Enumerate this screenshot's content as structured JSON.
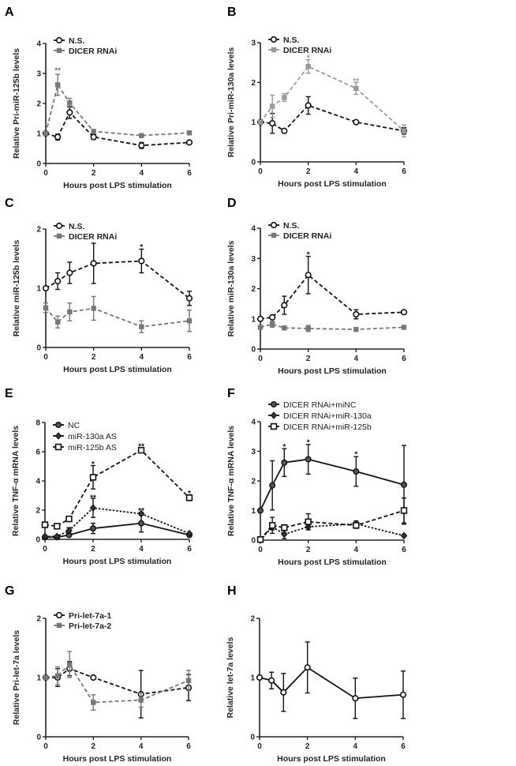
{
  "chart_data": [
    {
      "panel": "A",
      "type": "line",
      "xlabel": "Hours post LPS stimulation",
      "ylabel": "Relative Pri-miR-125b levels",
      "xlim": [
        0,
        6
      ],
      "ylim": [
        0,
        4
      ],
      "xticks": [
        0,
        2,
        4,
        6
      ],
      "yticks": [
        0,
        1,
        2,
        3,
        4
      ],
      "legend": "top-left",
      "grid": false,
      "x": [
        0,
        0.5,
        1,
        2,
        4,
        6
      ],
      "series": [
        {
          "name": "N.S.",
          "color": "#111111",
          "marker": "open-circle",
          "line": "dashed",
          "values": [
            1,
            0.88,
            1.7,
            0.88,
            0.6,
            0.7
          ],
          "errors": [
            0.05,
            0.1,
            0.2,
            0.08,
            0.1,
            0.05
          ]
        },
        {
          "name": "DICER RNAi",
          "color": "#777777",
          "marker": "square",
          "line": "dashed",
          "values": [
            1,
            2.62,
            2.02,
            1.07,
            0.93,
            1.02
          ],
          "errors": [
            0.05,
            0.35,
            0.15,
            0.05,
            0.04,
            0.04
          ]
        }
      ],
      "annotations": [
        {
          "x": 0.5,
          "y": 3.15,
          "text": "**",
          "color": "#777777"
        }
      ]
    },
    {
      "panel": "B",
      "type": "line",
      "xlabel": "Hours post LPS stimulation",
      "ylabel": "Relative Pri-miR-130a levels",
      "xlim": [
        0,
        6
      ],
      "ylim": [
        0,
        3
      ],
      "xticks": [
        0,
        2,
        4,
        6
      ],
      "yticks": [
        0,
        1,
        2,
        3
      ],
      "legend": "top-left",
      "grid": false,
      "x": [
        0,
        0.5,
        1,
        2,
        4,
        6
      ],
      "series": [
        {
          "name": "N.S.",
          "color": "#111111",
          "marker": "open-circle",
          "line": "dashed",
          "values": [
            1,
            0.97,
            0.78,
            1.42,
            1.0,
            0.78
          ],
          "errors": [
            0.03,
            0.25,
            0.05,
            0.22,
            0.02,
            0.08
          ]
        },
        {
          "name": "DICER RNAi",
          "color": "#999999",
          "marker": "square",
          "line": "dashed",
          "values": [
            1,
            1.4,
            1.62,
            2.4,
            1.85,
            0.78
          ],
          "errors": [
            0.03,
            0.28,
            0.1,
            0.17,
            0.15,
            0.15
          ]
        }
      ],
      "annotations": [
        {
          "x": 2,
          "y": 2.65,
          "text": "*",
          "color": "#999999"
        },
        {
          "x": 4,
          "y": 2.07,
          "text": "**",
          "color": "#999999"
        }
      ]
    },
    {
      "panel": "C",
      "type": "line",
      "xlabel": "Hours post LPS stimulation",
      "ylabel": "Relative miR-125b levels",
      "xlim": [
        0,
        6
      ],
      "ylim": [
        0,
        2
      ],
      "xticks": [
        0,
        2,
        4,
        6
      ],
      "yticks": [
        0,
        1,
        2
      ],
      "legend": "top-left",
      "grid": false,
      "x": [
        0,
        0.5,
        1,
        2,
        4,
        6
      ],
      "series": [
        {
          "name": "N.S.",
          "color": "#111111",
          "marker": "open-circle",
          "line": "dashed",
          "values": [
            1,
            1.12,
            1.26,
            1.42,
            1.46,
            0.83
          ],
          "errors": [
            0.02,
            0.14,
            0.18,
            0.34,
            0.2,
            0.12
          ]
        },
        {
          "name": "DICER RNAi",
          "color": "#777777",
          "marker": "square",
          "line": "dashed",
          "values": [
            0.67,
            0.43,
            0.6,
            0.66,
            0.35,
            0.45
          ],
          "errors": [
            0.08,
            0.1,
            0.15,
            0.2,
            0.1,
            0.18
          ]
        }
      ],
      "annotations": [
        {
          "x": 4,
          "y": 1.72,
          "text": "*",
          "color": "#111111"
        }
      ]
    },
    {
      "panel": "D",
      "type": "line",
      "xlabel": "Hours post LPS stimulation",
      "ylabel": "Relative miR-130a levels",
      "xlim": [
        0,
        6
      ],
      "ylim": [
        0,
        4
      ],
      "xticks": [
        0,
        2,
        4,
        6
      ],
      "yticks": [
        0,
        1,
        2,
        3,
        4
      ],
      "legend": "top-left",
      "grid": false,
      "x": [
        0,
        0.5,
        1,
        2,
        4,
        6
      ],
      "series": [
        {
          "name": "N.S.",
          "color": "#111111",
          "marker": "open-circle",
          "line": "dashed",
          "values": [
            1,
            1.05,
            1.45,
            2.45,
            1.15,
            1.22
          ],
          "errors": [
            0.03,
            0.05,
            0.3,
            0.62,
            0.15,
            0.05
          ]
        },
        {
          "name": "DICER RNAi",
          "color": "#777777",
          "marker": "square",
          "line": "dashed",
          "values": [
            0.72,
            0.82,
            0.7,
            0.68,
            0.65,
            0.72
          ],
          "errors": [
            0.05,
            0.1,
            0.05,
            0.1,
            0.03,
            0.03
          ]
        }
      ],
      "annotations": [
        {
          "x": 2,
          "y": 3.18,
          "text": "*",
          "color": "#111111"
        }
      ]
    },
    {
      "panel": "E",
      "type": "line",
      "xlabel": "Hours post LPS stimulation",
      "ylabel": "Relative TNF-α mRNA levels",
      "xlim": [
        0,
        6
      ],
      "ylim": [
        0,
        8
      ],
      "xticks": [
        0,
        2,
        4,
        6
      ],
      "yticks": [
        0,
        2,
        4,
        6,
        8
      ],
      "legend": "top-left",
      "grid": false,
      "x": [
        0,
        0.5,
        1,
        2,
        4,
        6
      ],
      "series": [
        {
          "name": "NC",
          "color": "#111111",
          "marker": "filled-circle",
          "line": "solid",
          "values": [
            0.15,
            0.15,
            0.3,
            0.75,
            1.1,
            0.3
          ],
          "errors": [
            0.05,
            0.05,
            0.1,
            0.35,
            0.6,
            0.05
          ]
        },
        {
          "name": "miR-130a AS",
          "color": "#111111",
          "marker": "filled-diamond",
          "line": "dotted",
          "values": [
            0.2,
            0.2,
            0.6,
            2.15,
            1.75,
            0.4
          ],
          "errors": [
            0.05,
            0.05,
            0.2,
            0.65,
            0.1,
            0.05
          ]
        },
        {
          "name": "miR-125b AS",
          "color": "#111111",
          "marker": "open-square",
          "line": "dashed",
          "values": [
            1,
            0.9,
            1.4,
            4.25,
            6.1,
            2.85
          ],
          "errors": [
            0.05,
            0.05,
            0.1,
            0.8,
            0.1,
            0.2
          ]
        }
      ],
      "annotations": [
        {
          "x": 2,
          "y": 5.25,
          "text": "*",
          "color": "#111111"
        },
        {
          "x": 2,
          "y": 2.95,
          "text": "**",
          "color": "#111111"
        },
        {
          "x": 4,
          "y": 6.45,
          "text": "**",
          "color": "#111111"
        },
        {
          "x": 4,
          "y": 2.05,
          "text": "**",
          "color": "#111111"
        },
        {
          "x": 6,
          "y": 3.25,
          "text": "*",
          "color": "#111111"
        }
      ]
    },
    {
      "panel": "F",
      "type": "line",
      "xlabel": "Hours post LPS stimulation",
      "ylabel": "Relative TNF-α mRNA levels",
      "xlim": [
        0,
        6
      ],
      "ylim": [
        0,
        4
      ],
      "xticks": [
        0,
        2,
        4,
        6
      ],
      "yticks": [
        0,
        1,
        2,
        3,
        4
      ],
      "legend": "top-left",
      "grid": false,
      "x": [
        0,
        0.5,
        1,
        2,
        4,
        6
      ],
      "series": [
        {
          "name": "DICER RNAi+miNC",
          "color": "#111111",
          "marker": "filled-circle",
          "line": "solid",
          "values": [
            1,
            1.85,
            2.62,
            2.73,
            2.32,
            1.87
          ],
          "errors": [
            0.02,
            0.83,
            0.47,
            0.5,
            0.5,
            1.33
          ]
        },
        {
          "name": "DICER RNAi+miR-130a",
          "color": "#111111",
          "marker": "filled-diamond",
          "line": "dotted",
          "values": [
            0,
            0.45,
            0.2,
            0.45,
            0.55,
            0.15
          ],
          "errors": [
            0,
            0.1,
            0.15,
            0.1,
            0.1,
            0.03
          ]
        },
        {
          "name": "DICER RNAi+miR-125b",
          "color": "#111111",
          "marker": "open-square",
          "line": "dashed",
          "values": [
            0.02,
            0.5,
            0.42,
            0.62,
            0.5,
            1.0
          ],
          "errors": [
            0.02,
            0.27,
            0.1,
            0.27,
            0.1,
            0.42
          ]
        }
      ],
      "annotations": [
        {
          "x": 1,
          "y": 3.2,
          "text": "*",
          "color": "#111111"
        },
        {
          "x": 2,
          "y": 3.35,
          "text": "*",
          "color": "#111111"
        },
        {
          "x": 4,
          "y": 2.95,
          "text": "*",
          "color": "#111111"
        }
      ]
    },
    {
      "panel": "G",
      "type": "line",
      "xlabel": "Hours post LPS stimulation",
      "ylabel": "Relative Pri-let-7a levels",
      "xlim": [
        0,
        6
      ],
      "ylim": [
        0,
        2
      ],
      "xticks": [
        0,
        2,
        4,
        6
      ],
      "yticks": [
        0,
        1,
        2
      ],
      "legend": "top-left",
      "grid": false,
      "x": [
        0,
        0.5,
        1,
        2,
        4,
        6
      ],
      "series": [
        {
          "name": "Pri-let-7a-1",
          "color": "#111111",
          "marker": "open-circle",
          "line": "dashed",
          "values": [
            1,
            1.0,
            1.15,
            1.0,
            0.72,
            0.83
          ],
          "errors": [
            0.02,
            0.15,
            0.12,
            0.02,
            0.4,
            0.22
          ]
        },
        {
          "name": "Pri-let-7a-2",
          "color": "#777777",
          "marker": "square",
          "line": "dashed",
          "values": [
            1,
            1.03,
            1.22,
            0.58,
            0.62,
            0.95
          ],
          "errors": [
            0.02,
            0.15,
            0.22,
            0.13,
            0.12,
            0.17
          ]
        }
      ],
      "annotations": []
    },
    {
      "panel": "H",
      "type": "line",
      "xlabel": "Hours post LPS stimulation",
      "ylabel": "Relative let-7a levels",
      "xlim": [
        0,
        6
      ],
      "ylim": [
        0,
        2
      ],
      "xticks": [
        0,
        2,
        4,
        6
      ],
      "yticks": [
        0,
        1,
        2
      ],
      "legend": "none",
      "grid": false,
      "x": [
        0,
        0.5,
        1,
        2,
        4,
        6
      ],
      "series": [
        {
          "color": "#111111",
          "marker": "open-circle",
          "line": "solid",
          "values": [
            1,
            0.95,
            0.75,
            1.17,
            0.65,
            0.71
          ],
          "errors": [
            0.02,
            0.14,
            0.32,
            0.43,
            0.34,
            0.4
          ]
        }
      ],
      "annotations": []
    }
  ]
}
